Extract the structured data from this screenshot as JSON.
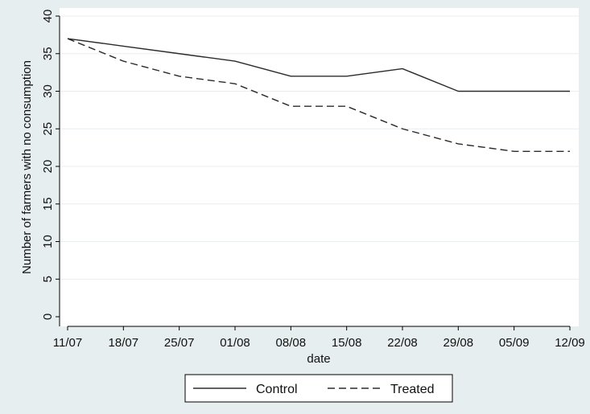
{
  "chart_data": {
    "type": "line",
    "title": "",
    "xlabel": "date",
    "ylabel": "Number of farmers with no consumption",
    "x": [
      "11/07",
      "18/07",
      "25/07",
      "01/08",
      "08/08",
      "15/08",
      "22/08",
      "29/08",
      "05/09",
      "12/09"
    ],
    "ylim": [
      0,
      40
    ],
    "yticks": [
      0,
      5,
      10,
      15,
      20,
      25,
      30,
      35,
      40
    ],
    "grid": true,
    "legend_position": "bottom",
    "series": [
      {
        "name": "Control",
        "style": "solid",
        "color": "#2b2b2b",
        "values": [
          37,
          36,
          35,
          34,
          32,
          32,
          33,
          30,
          30,
          30
        ]
      },
      {
        "name": "Treated",
        "style": "dashed",
        "color": "#2b2b2b",
        "values": [
          37,
          34,
          32,
          31,
          28,
          28,
          25,
          23,
          22,
          22
        ]
      }
    ]
  }
}
